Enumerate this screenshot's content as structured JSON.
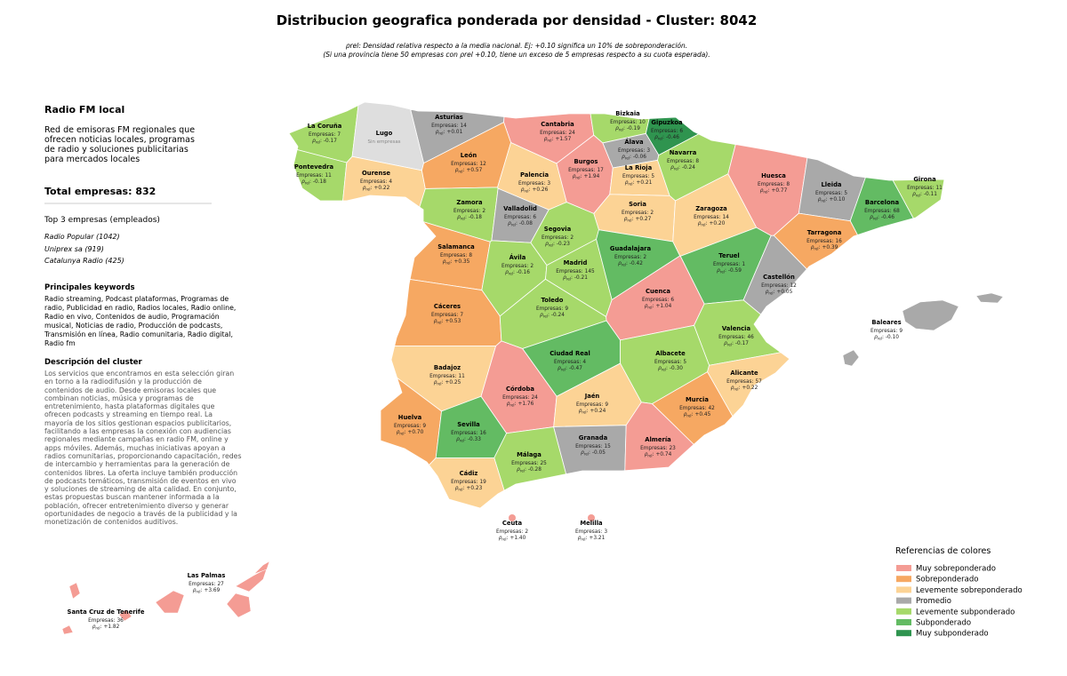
{
  "title": "Distribucion geografica ponderada por densidad - Cluster: 8042",
  "subtitle": [
    "ρrel: Densidad relativa respecto a la media nacional. Ej: +0.10 significa un 10% de sobreponderación.",
    "(Si una provincia tiene 50 empresas con ρrel +0.10, tiene un exceso de 5 empresas respecto a su cuota esperada)."
  ],
  "panel": {
    "heading": "Radio FM local",
    "description": "Red de emisoras FM regionales que ofrecen noticias locales, programas de radio y soluciones publicitarias para mercados locales",
    "total_label": "Total empresas:",
    "total": 832,
    "top_title": "Top 3 empresas (empleados)",
    "top": [
      "Radio Popular (1042)",
      "Uniprex sa (919)",
      "Catalunya Radio (425)"
    ],
    "keywords_title": "Principales keywords",
    "keywords": "Radio streaming, Podcast plataformas, Programas de radio, Publicidad en radio, Radios locales, Radio online, Radio en vivo, Contenidos de audio, Programación musical, Noticias de radio, Producción de podcasts, Transmisión en línea, Radio comunitaria, Radio digital, Radio fm",
    "cluster_title": "Descripción del cluster",
    "cluster_text": "Los servicios que encontramos en esta selección giran en torno a la radiodifusión y la producción de contenidos de audio. Desde emisoras locales que combinan noticias, música y programas de entretenimiento, hasta plataformas digitales que ofrecen podcasts y streaming en tiempo real. La mayoría de los sitios gestionan espacios publicitarios, facilitando a las empresas la conexión con audiencias regionales mediante campañas en radio FM, online y apps móviles. Además, muchas iniciativas apoyan a radios comunitarias, proporcionando capacitación, redes de intercambio y herramientas para la generación de contenidos libres. La oferta incluye también producción de podcasts temáticos, transmisión de eventos en vivo y soluciones de streaming de alta calidad. En conjunto, estas propuestas buscan mantener informada a la población, ofrecer entretenimiento diverso y generar oportunidades de negocio a través de la publicidad y la monetización de contenidos auditivos."
  },
  "labels": {
    "empresas": "Empresas:",
    "rho_symbol": "ρ",
    "rho_sub": "rel",
    "rho_suffix": ":"
  },
  "provinces": [
    {
      "name": "Asturias",
      "empresas": 14,
      "rho": "+0.01",
      "color": "#a9a9a9"
    },
    {
      "name": "Cantabria",
      "empresas": 24,
      "rho": "+1.57",
      "color": "#f49c94"
    },
    {
      "name": "Bizkaia",
      "empresas": 10,
      "rho": "-0.19",
      "color": "#a6d96a"
    },
    {
      "name": "Gipuzkoa",
      "empresas": 6,
      "rho": "-0.46",
      "color": "#2f944f"
    },
    {
      "name": "Álava",
      "empresas": 3,
      "rho": "-0.06",
      "color": "#a9a9a9"
    },
    {
      "name": "La Coruña",
      "empresas": 7,
      "rho": "-0.17",
      "color": "#a6d96a"
    },
    {
      "name": "Lugo",
      "note": "Sin empresas",
      "color": "#dedede"
    },
    {
      "name": "Pontevedra",
      "empresas": 11,
      "rho": "-0.18",
      "color": "#a6d96a"
    },
    {
      "name": "Ourense",
      "empresas": 4,
      "rho": "+0.22",
      "color": "#fcd395"
    },
    {
      "name": "León",
      "empresas": 12,
      "rho": "+0.57",
      "color": "#f6a862"
    },
    {
      "name": "Palencia",
      "empresas": 3,
      "rho": "+0.26",
      "color": "#fcd395"
    },
    {
      "name": "Burgos",
      "empresas": 17,
      "rho": "+1.94",
      "color": "#f49c94"
    },
    {
      "name": "La Rioja",
      "empresas": 5,
      "rho": "+0.21",
      "color": "#fcd395"
    },
    {
      "name": "Navarra",
      "empresas": 8,
      "rho": "-0.24",
      "color": "#a6d96a"
    },
    {
      "name": "Huesca",
      "empresas": 8,
      "rho": "+0.77",
      "color": "#f49c94"
    },
    {
      "name": "Lleida",
      "empresas": 5,
      "rho": "+0.10",
      "color": "#a9a9a9"
    },
    {
      "name": "Girona",
      "empresas": 11,
      "rho": "-0.11",
      "color": "#a6d96a"
    },
    {
      "name": "Barcelona",
      "empresas": 68,
      "rho": "-0.46",
      "color": "#63bb63"
    },
    {
      "name": "Tarragona",
      "empresas": 16,
      "rho": "+0.39",
      "color": "#f6a862"
    },
    {
      "name": "Zamora",
      "empresas": 2,
      "rho": "-0.18",
      "color": "#a6d96a"
    },
    {
      "name": "Valladolid",
      "empresas": 6,
      "rho": "-0.08",
      "color": "#a9a9a9"
    },
    {
      "name": "Soria",
      "empresas": 2,
      "rho": "+0.27",
      "color": "#fcd395"
    },
    {
      "name": "Zaragoza",
      "empresas": 14,
      "rho": "+0.20",
      "color": "#fcd395"
    },
    {
      "name": "Segovia",
      "empresas": 2,
      "rho": "-0.23",
      "color": "#a6d96a"
    },
    {
      "name": "Salamanca",
      "empresas": 8,
      "rho": "+0.35",
      "color": "#f6a862"
    },
    {
      "name": "Ávila",
      "empresas": 2,
      "rho": "-0.16",
      "color": "#a6d96a"
    },
    {
      "name": "Madrid",
      "empresas": 145,
      "rho": "-0.21",
      "color": "#a6d96a"
    },
    {
      "name": "Guadalajara",
      "empresas": 2,
      "rho": "-0.42",
      "color": "#63bb63"
    },
    {
      "name": "Teruel",
      "empresas": 1,
      "rho": "-0.59",
      "color": "#63bb63"
    },
    {
      "name": "Castellón",
      "empresas": 12,
      "rho": "+0.05",
      "color": "#a9a9a9"
    },
    {
      "name": "Cáceres",
      "empresas": 7,
      "rho": "+0.53",
      "color": "#f6a862"
    },
    {
      "name": "Toledo",
      "empresas": 9,
      "rho": "-0.24",
      "color": "#a6d96a"
    },
    {
      "name": "Cuenca",
      "empresas": 6,
      "rho": "+1.04",
      "color": "#f49c94"
    },
    {
      "name": "Valencia",
      "empresas": 46,
      "rho": "-0.17",
      "color": "#a6d96a"
    },
    {
      "name": "Ciudad Real",
      "empresas": 4,
      "rho": "-0.47",
      "color": "#63bb63"
    },
    {
      "name": "Albacete",
      "empresas": 5,
      "rho": "-0.30",
      "color": "#a6d96a"
    },
    {
      "name": "Alicante",
      "empresas": 57,
      "rho": "+0.22",
      "color": "#fcd395"
    },
    {
      "name": "Badajoz",
      "empresas": 11,
      "rho": "+0.25",
      "color": "#fcd395"
    },
    {
      "name": "Córdoba",
      "empresas": 24,
      "rho": "+1.76",
      "color": "#f49c94"
    },
    {
      "name": "Jaén",
      "empresas": 9,
      "rho": "+0.24",
      "color": "#fcd395"
    },
    {
      "name": "Murcia",
      "empresas": 42,
      "rho": "+0.45",
      "color": "#f6a862"
    },
    {
      "name": "Huelva",
      "empresas": 9,
      "rho": "+0.70",
      "color": "#f6a862"
    },
    {
      "name": "Sevilla",
      "empresas": 16,
      "rho": "-0.33",
      "color": "#63bb63"
    },
    {
      "name": "Granada",
      "empresas": 15,
      "rho": "-0.05",
      "color": "#a9a9a9"
    },
    {
      "name": "Almería",
      "empresas": 23,
      "rho": "+0.74",
      "color": "#f49c94"
    },
    {
      "name": "Málaga",
      "empresas": 25,
      "rho": "-0.28",
      "color": "#a6d96a"
    },
    {
      "name": "Cádiz",
      "empresas": 19,
      "rho": "+0.23",
      "color": "#fcd395"
    },
    {
      "name": "Baleares",
      "empresas": 9,
      "rho": "-0.10",
      "color": "#a9a9a9"
    },
    {
      "name": "Ceuta",
      "empresas": 2,
      "rho": "+1.40",
      "color": "#f49c94"
    },
    {
      "name": "Melilla",
      "empresas": 3,
      "rho": "+3.21",
      "color": "#f49c94"
    },
    {
      "name": "Las Palmas",
      "empresas": 27,
      "rho": "+3.69",
      "color": "#f49c94"
    },
    {
      "name": "Santa Cruz de Tenerife",
      "empresas": 36,
      "rho": "+1.82",
      "color": "#f49c94"
    }
  ],
  "legend": {
    "title": "Referencias de colores",
    "items": [
      {
        "label": "Muy sobreponderado",
        "color": "#f49c94"
      },
      {
        "label": "Sobreponderado",
        "color": "#f6a862"
      },
      {
        "label": "Levemente sobreponderado",
        "color": "#fcd395"
      },
      {
        "label": "Promedio",
        "color": "#a9a9a9"
      },
      {
        "label": "Levemente subponderado",
        "color": "#a6d96a"
      },
      {
        "label": "Subponderado",
        "color": "#63bb63"
      },
      {
        "label": "Muy subponderado",
        "color": "#2f944f"
      }
    ]
  }
}
